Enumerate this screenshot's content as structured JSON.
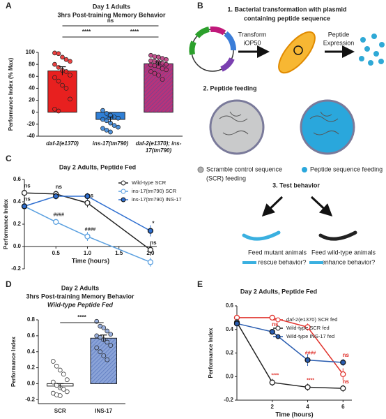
{
  "chart_data": [
    {
      "type": "bar",
      "panel": "A",
      "title": "Day 1 Adults",
      "subtitle": "3hrs Post-training Memory Behavior",
      "ylabel": "Performance Index (% Max)",
      "categories": [
        "daf-2(e1370)",
        "ins-17(tm790)",
        "daf-2(e1370); ins-17(tm790)"
      ],
      "values": [
        69,
        -12,
        81
      ],
      "errors": [
        7,
        4,
        3
      ],
      "colors": [
        "#e8201f",
        "#2f7fd6",
        "#b8337a"
      ],
      "hatch": [
        false,
        false,
        true
      ],
      "points": [
        [
          99,
          98,
          92,
          88,
          85,
          80,
          75,
          70,
          68,
          62,
          58,
          52,
          45,
          40,
          22,
          5,
          2
        ],
        [
          3,
          -2,
          -5,
          -8,
          -10,
          -12,
          -14,
          -18,
          -22,
          -25,
          -27,
          -30,
          -33
        ],
        [
          95,
          93,
          92,
          90,
          88,
          86,
          85,
          84,
          82,
          80,
          79,
          78,
          76,
          73,
          71,
          68,
          65,
          62,
          55
        ]
      ],
      "ylim": [
        -40,
        100
      ],
      "yticks": [
        -40,
        -20,
        0,
        20,
        40,
        60,
        80,
        100
      ],
      "significance": [
        "ns",
        "****",
        "****"
      ]
    },
    {
      "type": "line",
      "panel": "C",
      "title": "Day 2 Adults, Peptide Fed",
      "xlabel": "Time (hours)",
      "ylabel": "Performance Index",
      "x": [
        0,
        0.5,
        1,
        2
      ],
      "xlim": [
        0,
        2.1
      ],
      "xticks": [
        0.5,
        {
          "value": 1,
          "label": "1.0"
        },
        1.5,
        {
          "value": 2,
          "label": "2.0"
        }
      ],
      "ylim": [
        -0.2,
        0.6
      ],
      "yticks": [
        -0.2,
        {
          "value": 0,
          "label": "0.0"
        },
        0.2,
        0.4,
        0.6
      ],
      "xaxis": "zero",
      "legend": "top-right",
      "series": [
        {
          "name": "Wild-type SCR",
          "color": "#222222",
          "filled": false,
          "values": [
            0.48,
            0.47,
            0.39,
            -0.03
          ],
          "errors": [
            0.03,
            0.03,
            0.04,
            0.05
          ],
          "annotations": [
            "ns",
            "ns",
            "ns",
            "ns"
          ]
        },
        {
          "name": "ins-17(tm790) SCR",
          "color": "#5aa0e0",
          "filled": false,
          "values": [
            0.36,
            0.22,
            0.09,
            -0.14
          ],
          "errors": [
            0.02,
            0.02,
            0.04,
            0.04
          ],
          "annotations": [
            "ns",
            "####",
            "####",
            null
          ]
        },
        {
          "name": "ins-17(tm790) INS-17",
          "color": "#2f6fd0",
          "filled": true,
          "values": [
            0.36,
            0.45,
            0.45,
            0.14
          ],
          "errors": [
            0.02,
            0.03,
            0.03,
            0.05
          ],
          "annotations": [
            null,
            null,
            null,
            "*"
          ]
        }
      ]
    },
    {
      "type": "bar",
      "panel": "D",
      "title": "Day 2 Adults",
      "subtitle": "3hrs Post-training Memory Behavior",
      "subtitle2": "Wild-type Peptide Fed",
      "ylabel": "Performance Index",
      "categories": [
        "SCR",
        "INS-17"
      ],
      "values": [
        -0.03,
        0.57
      ],
      "errors": [
        0.03,
        0.04
      ],
      "colors": [
        "#ffffff",
        "#8aa3d8"
      ],
      "hatch": [
        false,
        true
      ],
      "points": [
        [
          0.28,
          0.22,
          0.17,
          0.12,
          0.05,
          0.02,
          -0.02,
          -0.05,
          -0.07,
          -0.1,
          -0.12,
          -0.14,
          -0.15
        ],
        [
          0.78,
          0.72,
          0.7,
          0.66,
          0.62,
          0.6,
          0.58,
          0.55,
          0.52,
          0.48,
          0.45,
          0.4,
          0.35,
          0.3
        ]
      ],
      "ylim": [
        -0.25,
        0.8
      ],
      "yticks": [
        -0.2,
        {
          "value": 0,
          "label": "0.0"
        },
        0.2,
        0.4,
        0.6,
        0.8
      ],
      "significance": [
        "****"
      ]
    },
    {
      "type": "line",
      "panel": "E",
      "title": "Day 2 Adults, Peptide Fed",
      "xlabel": "Time (hours)",
      "ylabel": "Performance Index",
      "x": [
        0,
        2,
        4,
        6
      ],
      "xlim": [
        0,
        6.5
      ],
      "xticks": [
        2,
        4,
        6
      ],
      "ylim": [
        -0.2,
        0.6
      ],
      "yticks": [
        -0.2,
        {
          "value": 0,
          "label": "0.0"
        },
        0.2,
        0.4,
        0.6
      ],
      "xaxis": "bottom",
      "legend": "top-right",
      "series": [
        {
          "name": "daf-2(e1370) SCR fed",
          "color": "#e0312b",
          "filled": false,
          "values": [
            0.5,
            0.5,
            0.42,
            0.02
          ],
          "errors": [
            0.02,
            0.02,
            0.03,
            0.05
          ],
          "annotations": [
            null,
            null,
            null,
            "ns"
          ],
          "annotation_color": "#e0312b",
          "annotation_position": "below"
        },
        {
          "name": "Wild-type SCR fed",
          "color": "#222222",
          "filled": false,
          "values": [
            0.46,
            -0.05,
            -0.09,
            -0.1
          ],
          "errors": [
            0.03,
            0.03,
            0.03,
            0.03
          ],
          "annotations": [
            null,
            "****",
            "****",
            null
          ],
          "annotation_color": "#e0312b"
        },
        {
          "name": "Wild-type INS-17 fed",
          "color": "#2a5db0",
          "filled": true,
          "values": [
            0.45,
            0.38,
            0.14,
            0.12
          ],
          "errors": [
            0.03,
            0.02,
            0.05,
            0.03
          ],
          "annotations": [
            null,
            "ns",
            "####",
            "ns"
          ],
          "annotation_color": "#e0312b"
        }
      ]
    }
  ],
  "diagram": {
    "panel": "B",
    "step1": {
      "title": [
        "1.  Bacterial transformation with plasmid",
        "containing peptide sequence"
      ],
      "transform": [
        "Transform",
        "iOP50"
      ],
      "expression": [
        "Peptide",
        "Expression"
      ]
    },
    "step2": {
      "title": "2. Peptide feeding",
      "scr": [
        "Scramble control sequence",
        "(SCR) feeding"
      ],
      "peptide": "Peptide sequence feeding"
    },
    "step3": {
      "title": "3. Test behavior",
      "mutant": [
        "Feed mutant animals",
        "rescue behavior?"
      ],
      "wildtype": [
        "Feed wild-type animals",
        "enhance behavior?"
      ]
    }
  }
}
